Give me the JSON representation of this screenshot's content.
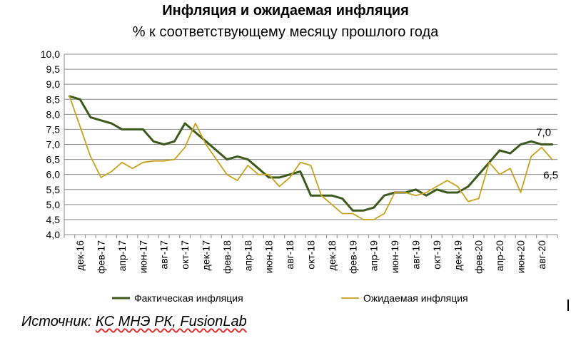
{
  "chart_data": {
    "type": "line",
    "title": "Инфляция и ожидаемая инфляция",
    "subtitle": "% к соответствующему месяцу прошлого года",
    "ylim": [
      4.0,
      10.0
    ],
    "ytick_labels": [
      "4,0",
      "4,5",
      "5,0",
      "5,5",
      "6,0",
      "6,5",
      "7,0",
      "7,5",
      "8,0",
      "8,5",
      "9,0",
      "9,5",
      "10,0"
    ],
    "x_tick_labels": [
      "дек-16",
      "фев-17",
      "апр-17",
      "июн-17",
      "авг-17",
      "окт-17",
      "дек-17",
      "фев-18",
      "апр-18",
      "июн-18",
      "авг-18",
      "окт-18",
      "дек-18",
      "фев-19",
      "апр-19",
      "июн-19",
      "авг-19",
      "окт-19",
      "дек-19",
      "фев-20",
      "апр-20",
      "июн-20",
      "авг-20"
    ],
    "x": [
      "ноя-16",
      "дек-16",
      "янв-17",
      "фев-17",
      "мар-17",
      "апр-17",
      "май-17",
      "июн-17",
      "июл-17",
      "авг-17",
      "сен-17",
      "окт-17",
      "ноя-17",
      "дек-17",
      "янв-18",
      "фев-18",
      "мар-18",
      "апр-18",
      "май-18",
      "июн-18",
      "июл-18",
      "авг-18",
      "сен-18",
      "окт-18",
      "ноя-18",
      "дек-18",
      "янв-19",
      "фев-19",
      "мар-19",
      "апр-19",
      "май-19",
      "июн-19",
      "июл-19",
      "авг-19",
      "сен-19",
      "окт-19",
      "ноя-19",
      "дек-19",
      "янв-20",
      "фев-20",
      "мар-20",
      "апр-20",
      "май-20",
      "июн-20",
      "июл-20",
      "авг-20",
      "сен-20"
    ],
    "grid": true,
    "legend_position": "bottom",
    "series": [
      {
        "name": "Фактическая инфляция",
        "color": "#3b5a1c",
        "values": [
          8.6,
          8.5,
          7.9,
          7.8,
          7.7,
          7.5,
          7.5,
          7.5,
          7.1,
          7.0,
          7.1,
          7.7,
          7.4,
          7.1,
          6.8,
          6.5,
          6.6,
          6.5,
          6.2,
          5.9,
          5.9,
          6.0,
          6.1,
          5.3,
          5.3,
          5.3,
          5.2,
          4.8,
          4.8,
          4.9,
          5.3,
          5.4,
          5.4,
          5.5,
          5.3,
          5.5,
          5.4,
          5.4,
          5.6,
          6.0,
          6.4,
          6.8,
          6.7,
          7.0,
          7.1,
          7.0,
          7.0
        ],
        "end_label": "7,0"
      },
      {
        "name": "Ожидаемая инфляция",
        "color": "#c8a21c",
        "values": [
          8.6,
          7.6,
          6.6,
          5.9,
          6.1,
          6.4,
          6.2,
          6.4,
          6.45,
          6.45,
          6.5,
          6.9,
          7.7,
          7.0,
          6.5,
          6.0,
          5.8,
          6.3,
          6.0,
          6.0,
          5.6,
          5.9,
          6.4,
          6.3,
          5.3,
          5.0,
          4.7,
          4.7,
          4.5,
          4.5,
          4.7,
          5.4,
          5.4,
          5.3,
          5.4,
          5.6,
          5.8,
          5.6,
          5.1,
          5.2,
          6.4,
          6.0,
          6.2,
          5.4,
          6.6,
          6.9,
          6.5
        ],
        "end_label": "6,5"
      }
    ],
    "source": {
      "prefix": "Источник: ",
      "main": "КС МНЭ РК, FusionLab"
    }
  }
}
